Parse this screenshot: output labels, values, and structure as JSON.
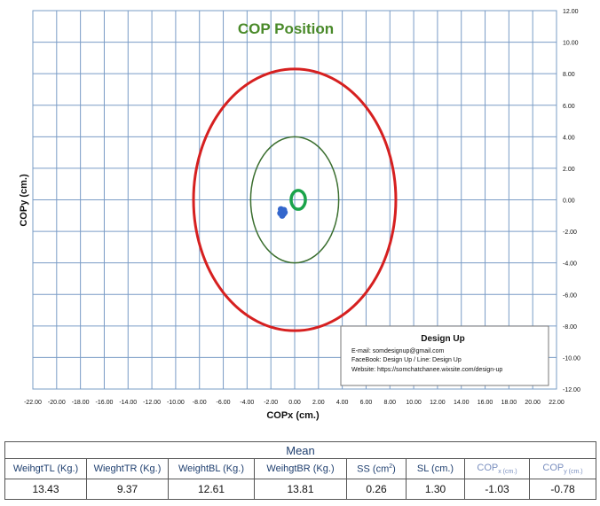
{
  "chart_data": {
    "type": "scatter",
    "title": "COP Position",
    "xlabel": "COPx (cm.)",
    "ylabel": "COPy (cm.)",
    "xlim": [
      -22,
      22
    ],
    "ylim": [
      -12,
      12
    ],
    "x_ticks": [
      "-22.00",
      "-20.00",
      "-18.00",
      "-16.00",
      "-14.00",
      "-12.00",
      "-10.00",
      "-8.00",
      "-6.00",
      "-4.00",
      "-2.00",
      "0.00",
      "2.00",
      "4.00",
      "6.00",
      "8.00",
      "10.00",
      "12.00",
      "14.00",
      "16.00",
      "18.00",
      "20.00",
      "22.00"
    ],
    "y_ticks": [
      "12.00",
      "10.00",
      "8.00",
      "6.00",
      "4.00",
      "2.00",
      "0.00",
      "-2.00",
      "-4.00",
      "-6.00",
      "-8.00",
      "-10.00",
      "-12.00"
    ],
    "y_axis_position": "right",
    "grid": true,
    "series": [
      {
        "kind": "ellipse",
        "color": "#d62020",
        "center": [
          0,
          0
        ],
        "radius_x": 8.5,
        "radius_y": 8.3
      },
      {
        "kind": "ellipse",
        "color": "#3a6e2e",
        "center": [
          0,
          0
        ],
        "radius_x": 3.7,
        "radius_y": 4.0
      },
      {
        "kind": "ellipse",
        "color": "#1aa34a",
        "center": [
          0.3,
          0
        ],
        "radius_x": 0.6,
        "radius_y": 0.6
      },
      {
        "kind": "points",
        "color": "#3366cc",
        "points": [
          [
            -1.03,
            -0.78
          ],
          [
            -1.1,
            -0.7
          ],
          [
            -0.95,
            -0.9
          ],
          [
            -1.2,
            -0.85
          ],
          [
            -0.9,
            -0.65
          ],
          [
            -1.05,
            -1.0
          ],
          [
            -1.15,
            -0.6
          ],
          [
            -0.85,
            -0.8
          ]
        ]
      }
    ]
  },
  "info_box": {
    "title": "Design Up",
    "email": "E-mail: somdesignup@gmail.com",
    "facebook": "FaceBook: Design Up  /  Line: Design Up",
    "website": "Website:  https://somchatchanee.wixsite.com/design-up"
  },
  "table": {
    "caption": "Mean",
    "headers": [
      "WeihgtTL (Kg.)",
      "WieghtTR (Kg.)",
      "WeightBL (Kg.)",
      "WeihgtBR (Kg.)",
      "SS (cm",
      "SL (cm.)",
      "COP",
      "COP"
    ],
    "header_sup": "2",
    "header_close": ")",
    "cop_x_sub": "x (cm.)",
    "cop_y_sub": "y (cm.)",
    "values": [
      "13.43",
      "9.37",
      "12.61",
      "13.81",
      "0.26",
      "1.30",
      "-1.03",
      "-0.78"
    ]
  }
}
